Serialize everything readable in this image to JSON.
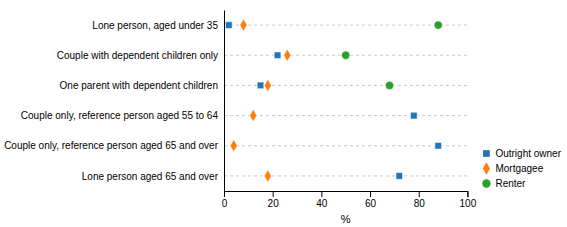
{
  "chart_data": {
    "type": "dot",
    "categories": [
      "Lone person, aged under 35",
      "Couple with dependent children only",
      "One parent with dependent children",
      "Couple only, reference person aged 55 to 64",
      "Couple only, reference person aged 65 and over",
      "Lone person aged 65 and over"
    ],
    "series": [
      {
        "name": "Outright owner",
        "marker": "square",
        "values": [
          2,
          22,
          15,
          78,
          88,
          72
        ]
      },
      {
        "name": "Mortgagee",
        "marker": "diamond",
        "values": [
          8,
          26,
          18,
          12,
          4,
          18
        ]
      },
      {
        "name": "Renter",
        "marker": "circle",
        "values": [
          88,
          50,
          68,
          null,
          null,
          null
        ]
      }
    ],
    "x_label": "%",
    "xlim": [
      0,
      100
    ],
    "xticks": [
      0,
      20,
      40,
      60,
      80,
      100
    ],
    "grid": true,
    "legend": "lower right"
  }
}
